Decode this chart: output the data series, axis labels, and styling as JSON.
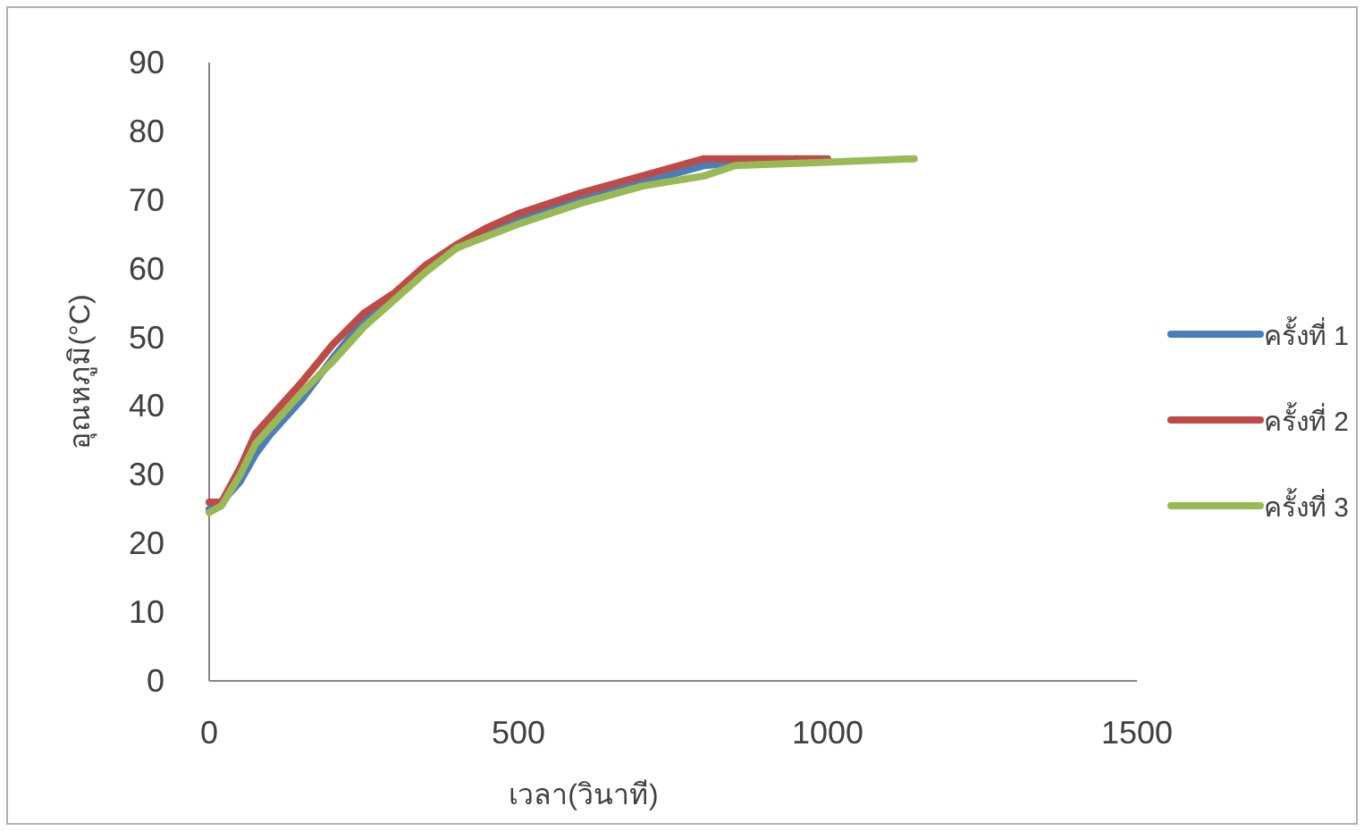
{
  "chart_data": {
    "type": "line",
    "xlabel": "เวลา(วินาที)",
    "ylabel": "อุณหภูมิ(°C)",
    "xlim": [
      0,
      1500
    ],
    "xticks": [
      0,
      500,
      1000,
      1500
    ],
    "ylim": [
      0,
      90
    ],
    "yticks": [
      0,
      10,
      20,
      30,
      40,
      50,
      60,
      70,
      80,
      90
    ],
    "grid": false,
    "legend": "right",
    "marker": "none",
    "line_style": "solid",
    "series": [
      {
        "name": "ครั้งที่ 1",
        "color": "#4a7ebb",
        "x": [
          0,
          20,
          50,
          75,
          100,
          150,
          200,
          250,
          300,
          350,
          400,
          500,
          600,
          700,
          800,
          950
        ],
        "values": [
          25,
          26,
          29,
          33,
          36,
          41,
          47,
          52.5,
          56,
          60,
          63,
          67,
          70,
          72.5,
          75,
          76
        ]
      },
      {
        "name": "ครั้งที่ 2",
        "color": "#be4b48",
        "x": [
          0,
          20,
          50,
          75,
          100,
          150,
          200,
          250,
          300,
          350,
          400,
          450,
          500,
          600,
          700,
          800,
          1000
        ],
        "values": [
          26,
          26,
          31,
          36,
          38.5,
          43.5,
          49,
          53.5,
          56.5,
          60.5,
          63.5,
          66,
          68,
          71,
          73.5,
          76,
          76
        ]
      },
      {
        "name": "ครั้งที่ 3",
        "color": "#98b954",
        "x": [
          0,
          20,
          50,
          75,
          100,
          150,
          200,
          250,
          300,
          350,
          400,
          500,
          600,
          700,
          800,
          850,
          1000,
          1140
        ],
        "values": [
          24.5,
          25.5,
          30,
          34.5,
          37,
          42,
          46.5,
          51.5,
          55.5,
          59.5,
          63,
          66.5,
          69.5,
          72,
          73.5,
          75,
          75.5,
          76
        ]
      }
    ]
  }
}
